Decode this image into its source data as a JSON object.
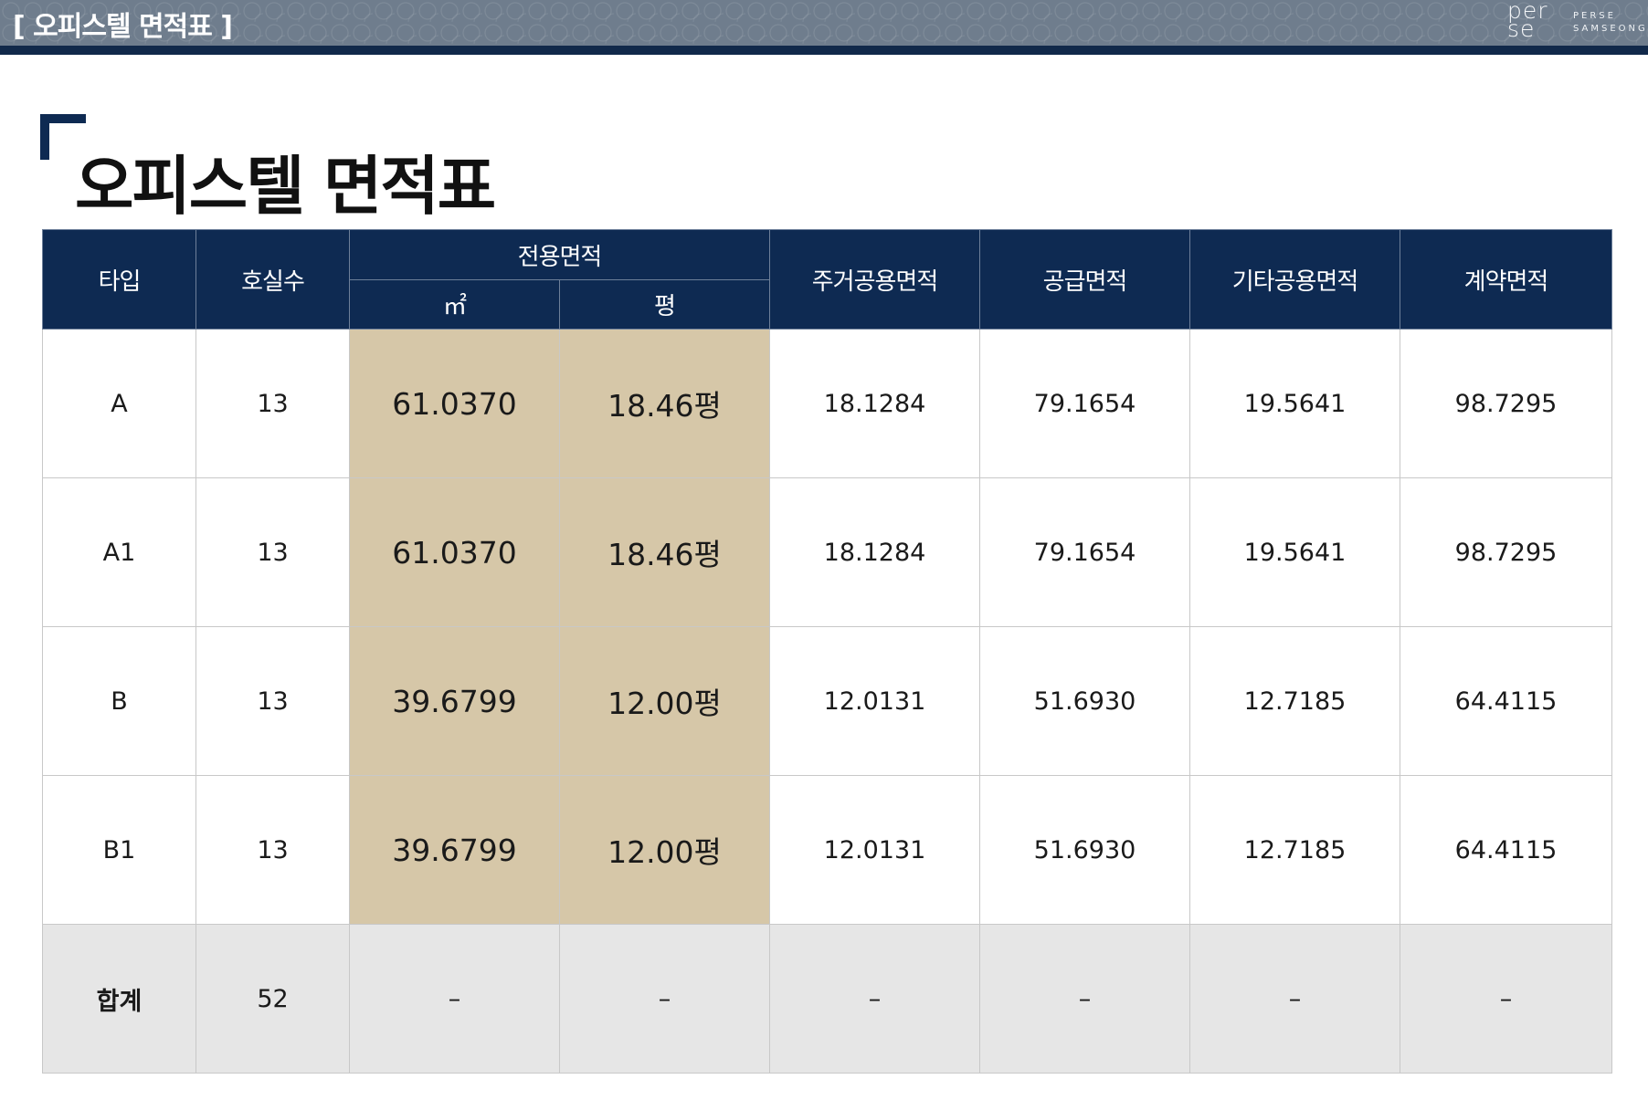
{
  "banner": {
    "title": "[ 오피스텔 면적표 ]",
    "logo_mark_top": "per",
    "logo_mark_bottom": "se",
    "logo_text_top": "PERSE",
    "logo_text_bottom": "SAMSEONG"
  },
  "page_title": "오피스텔 면적표",
  "table": {
    "headers": {
      "type": "타입",
      "units": "호실수",
      "exclusive": "전용면적",
      "sqm": "㎡",
      "pyeong": "평",
      "residential_common": "주거공용면적",
      "supply": "공급면적",
      "other_common": "기타공용면적",
      "contract": "계약면적"
    },
    "rows": [
      {
        "type": "A",
        "units": "13",
        "sqm": "61.0370",
        "pyeong": "18.46평",
        "residential_common": "18.1284",
        "supply": "79.1654",
        "other_common": "19.5641",
        "contract": "98.7295"
      },
      {
        "type": "A1",
        "units": "13",
        "sqm": "61.0370",
        "pyeong": "18.46평",
        "residential_common": "18.1284",
        "supply": "79.1654",
        "other_common": "19.5641",
        "contract": "98.7295"
      },
      {
        "type": "B",
        "units": "13",
        "sqm": "39.6799",
        "pyeong": "12.00평",
        "residential_common": "12.0131",
        "supply": "51.6930",
        "other_common": "12.7185",
        "contract": "64.4115"
      },
      {
        "type": "B1",
        "units": "13",
        "sqm": "39.6799",
        "pyeong": "12.00평",
        "residential_common": "12.0131",
        "supply": "51.6930",
        "other_common": "12.7185",
        "contract": "64.4115"
      }
    ],
    "total": {
      "type": "합계",
      "units": "52",
      "sqm": "–",
      "pyeong": "–",
      "residential_common": "–",
      "supply": "–",
      "other_common": "–",
      "contract": "–"
    }
  },
  "colors": {
    "header_bg": "#0e2a52",
    "highlight": "#d6c7a8",
    "total_bg": "#e6e6e6",
    "banner_bg": "#6f7d8d"
  }
}
